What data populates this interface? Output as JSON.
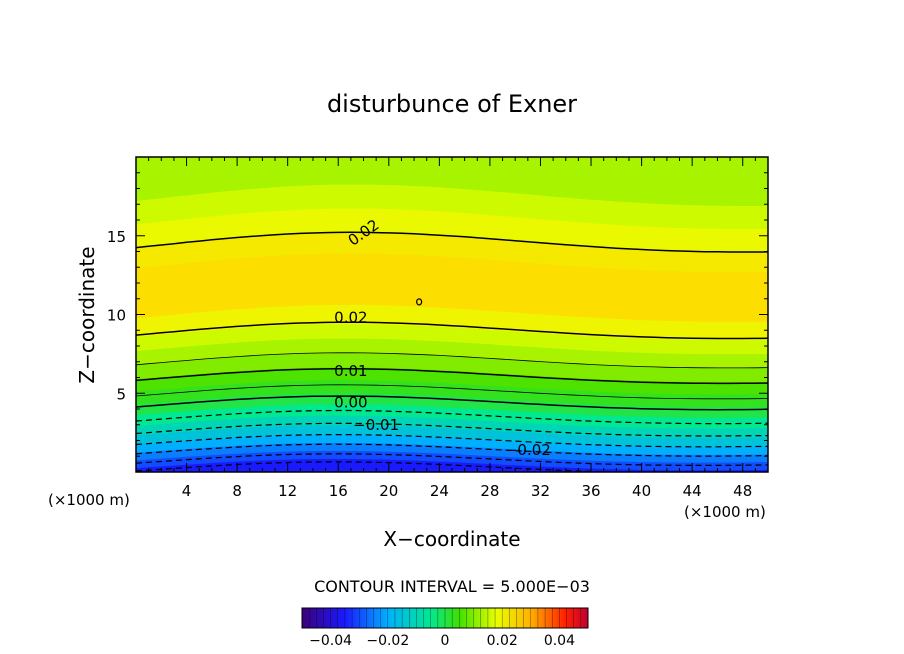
{
  "chart_data": {
    "type": "heatmap",
    "title": "disturbunce of Exner",
    "xlabel": "X−coordinate",
    "ylabel": "Z−coordinate",
    "x_unit_label_left": "(×1000 m)",
    "x_unit_label_right": "(×1000 m)",
    "x_ticks": [
      "4",
      "8",
      "12",
      "16",
      "20",
      "24",
      "28",
      "32",
      "36",
      "40",
      "44",
      "48"
    ],
    "x_tick_values": [
      4,
      8,
      12,
      16,
      20,
      24,
      28,
      32,
      36,
      40,
      44,
      48
    ],
    "y_ticks": [
      "5",
      "10",
      "15"
    ],
    "y_tick_values": [
      5,
      10,
      15
    ],
    "xlim": [
      0,
      50
    ],
    "ylim": [
      0,
      20
    ],
    "contour_interval_text": "CONTOUR INTERVAL = 5.000E−03",
    "colorbar": {
      "tick_labels": [
        "−0.04",
        "−0.02",
        "0",
        "0.02",
        "0.04"
      ],
      "tick_values": [
        -0.04,
        -0.02,
        0,
        0.02,
        0.04
      ],
      "range": [
        -0.05,
        0.05
      ]
    },
    "contour_labels": [
      {
        "text": "0.02",
        "x": 18,
        "z": 15.2
      },
      {
        "text": "0.02",
        "x": 17,
        "z": 9.8
      },
      {
        "text": "0.01",
        "x": 17,
        "z": 6.4
      },
      {
        "text": "0.00",
        "x": 17,
        "z": 4.4
      },
      {
        "text": "−0.01",
        "x": 19,
        "z": 3.0
      },
      {
        "text": "−0.02",
        "x": 31,
        "z": 1.4
      }
    ],
    "bands": [
      {
        "z0": 0.0,
        "z1": 0.4,
        "value": -0.035
      },
      {
        "z0": 0.4,
        "z1": 0.9,
        "value": -0.03
      },
      {
        "z0": 0.9,
        "z1": 1.4,
        "value": -0.025
      },
      {
        "z0": 1.4,
        "z1": 1.9,
        "value": -0.02
      },
      {
        "z0": 1.9,
        "z1": 2.5,
        "value": -0.015
      },
      {
        "z0": 2.5,
        "z1": 3.1,
        "value": -0.01
      },
      {
        "z0": 3.1,
        "z1": 3.8,
        "value": -0.005
      },
      {
        "z0": 3.8,
        "z1": 4.5,
        "value": 0.0
      },
      {
        "z0": 4.5,
        "z1": 5.3,
        "value": 0.003
      },
      {
        "z0": 5.3,
        "z1": 6.1,
        "value": 0.006
      },
      {
        "z0": 6.1,
        "z1": 7.0,
        "value": 0.01
      },
      {
        "z0": 7.0,
        "z1": 7.9,
        "value": 0.013
      },
      {
        "z0": 7.9,
        "z1": 8.8,
        "value": 0.016
      },
      {
        "z0": 8.8,
        "z1": 10.0,
        "value": 0.02
      },
      {
        "z0": 10.0,
        "z1": 13.2,
        "value": 0.024
      },
      {
        "z0": 13.2,
        "z1": 14.5,
        "value": 0.022
      },
      {
        "z0": 14.5,
        "z1": 16.0,
        "value": 0.019
      },
      {
        "z0": 16.0,
        "z1": 17.5,
        "value": 0.016
      },
      {
        "z0": 17.5,
        "z1": 20.0,
        "value": 0.013
      }
    ],
    "contours": [
      {
        "value": -0.03,
        "style": "dashed",
        "z": 0.2
      },
      {
        "value": -0.025,
        "style": "dashed",
        "z": 0.7
      },
      {
        "value": -0.02,
        "style": "dashed",
        "z": 1.3
      },
      {
        "value": -0.015,
        "style": "dashed",
        "z": 1.9
      },
      {
        "value": -0.01,
        "style": "dashed",
        "z": 2.6
      },
      {
        "value": -0.005,
        "style": "dashed",
        "z": 3.4
      },
      {
        "value": 0.0,
        "style": "solid",
        "z": 4.3
      },
      {
        "value": 0.005,
        "style": "solid-thin",
        "z": 5.0
      },
      {
        "value": 0.01,
        "style": "solid",
        "z": 6.0
      },
      {
        "value": 0.015,
        "style": "solid-thin",
        "z": 7.0
      },
      {
        "value": 0.02,
        "style": "solid",
        "z": 8.9
      },
      {
        "value": 0.02,
        "style": "solid",
        "z": 14.5
      }
    ],
    "grid": false,
    "colormap": "rainbow",
    "colors": {
      "yellow_light": "#e6ff00",
      "yellow": "#ffee00",
      "orange_yellow": "#ffd800",
      "green": "#33e000",
      "cyan": "#00e8d8",
      "blue": "#0090ff"
    }
  }
}
